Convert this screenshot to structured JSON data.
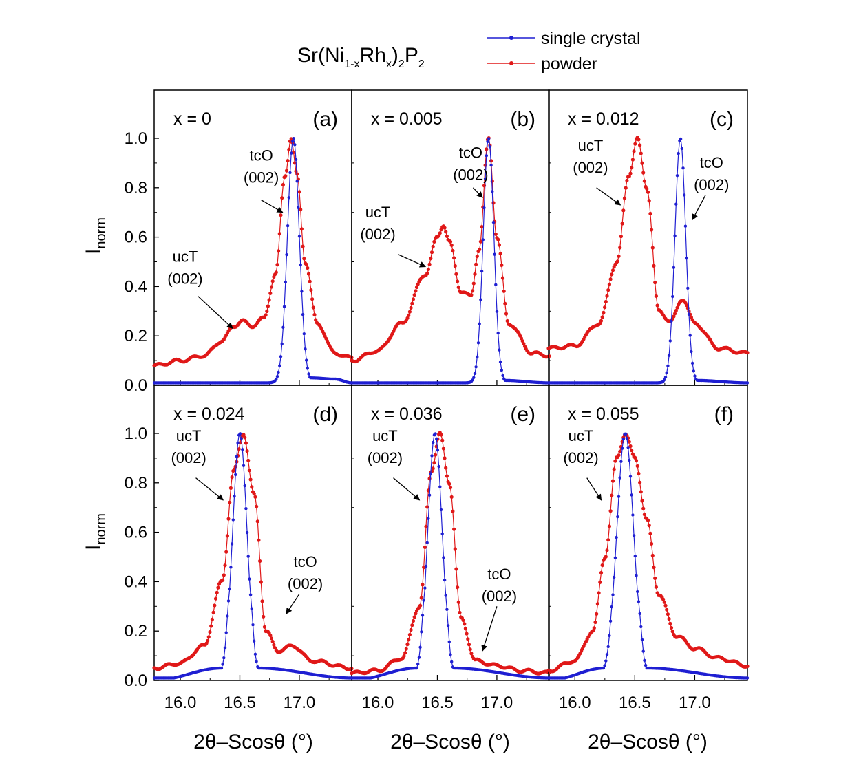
{
  "figure": {
    "formula": {
      "p1": "Sr(Ni",
      "s1": "1-x",
      "p2": "Rh",
      "s2": "x",
      "p3": ")",
      "s3": "2",
      "p4": "P",
      "s4": "2"
    },
    "ylabel": {
      "main": "I",
      "sub": "norm"
    },
    "xlabel": "2θ–Scosθ (°)"
  },
  "legend": [
    {
      "label": "single crystal",
      "color": "#1f1fd2"
    },
    {
      "label": "powder",
      "color": "#e01818"
    }
  ],
  "colors": {
    "single_crystal": "#1f1fd2",
    "powder": "#e01818"
  },
  "chart_data": [
    {
      "type": "line",
      "panel": "(a)",
      "x_label": "x = 0",
      "xlim": [
        15.78,
        17.44
      ],
      "ylim": [
        0,
        1.1
      ],
      "x_ticks": [
        16.0,
        16.5,
        17.0
      ],
      "x_tick_labels": [
        "16.0",
        "16.5",
        "17.0"
      ],
      "y_ticks": [
        0,
        0.2,
        0.4,
        0.6,
        0.8,
        1.0
      ],
      "y_tick_labels": [
        "0.0",
        "0.2",
        "0.4",
        "0.6",
        "0.8",
        "1.0"
      ],
      "series": [
        {
          "name": "single crystal",
          "peak_x": 16.95,
          "peak_y": 1.0,
          "width": 0.05,
          "base": 0.01,
          "points": [
            [
              15.78,
              0.01
            ],
            [
              16.8,
              0.01
            ],
            [
              16.87,
              0.07
            ],
            [
              16.91,
              0.5
            ],
            [
              16.95,
              1.0
            ],
            [
              16.99,
              0.5
            ],
            [
              17.03,
              0.07
            ],
            [
              17.1,
              0.03
            ],
            [
              17.3,
              0.025
            ],
            [
              17.44,
              0.01
            ]
          ]
        },
        {
          "name": "powder",
          "peak_x": 16.93,
          "peak_y": 1.0,
          "points": [
            [
              15.78,
              0.08
            ],
            [
              16.0,
              0.1
            ],
            [
              16.2,
              0.12
            ],
            [
              16.35,
              0.18
            ],
            [
              16.45,
              0.24
            ],
            [
              16.52,
              0.26
            ],
            [
              16.6,
              0.24
            ],
            [
              16.7,
              0.27
            ],
            [
              16.8,
              0.45
            ],
            [
              16.88,
              0.85
            ],
            [
              16.93,
              1.0
            ],
            [
              16.98,
              0.85
            ],
            [
              17.05,
              0.5
            ],
            [
              17.15,
              0.25
            ],
            [
              17.3,
              0.13
            ],
            [
              17.44,
              0.11
            ]
          ]
        }
      ],
      "annotations": [
        {
          "lines": [
            "tcO",
            "(002)"
          ],
          "x": 16.68,
          "y": 0.91,
          "arrow_from": [
            16.68,
            0.75
          ],
          "arrow_to": [
            16.86,
            0.7
          ]
        },
        {
          "lines": [
            "ucT",
            "(002)"
          ],
          "x": 16.04,
          "y": 0.5,
          "arrow_from": [
            16.15,
            0.36
          ],
          "arrow_to": [
            16.44,
            0.23
          ]
        }
      ]
    },
    {
      "type": "line",
      "panel": "(b)",
      "x_label": "x = 0.005",
      "xlim": [
        15.78,
        17.44
      ],
      "ylim": [
        0,
        1.1
      ],
      "x_ticks": [
        16.0,
        16.5,
        17.0
      ],
      "x_tick_labels": [
        "16.0",
        "16.5",
        "17.0"
      ],
      "series": [
        {
          "name": "single crystal",
          "peak_x": 16.93,
          "peak_y": 1.0,
          "width": 0.045,
          "base": 0.01,
          "points": [
            [
              15.78,
              0.01
            ],
            [
              16.8,
              0.01
            ],
            [
              16.87,
              0.2
            ],
            [
              16.93,
              1.0
            ],
            [
              16.99,
              0.2
            ],
            [
              17.05,
              0.02
            ],
            [
              17.44,
              0.01
            ]
          ]
        },
        {
          "name": "powder",
          "peak_x": 16.93,
          "peak_y": 1.0,
          "points": [
            [
              15.78,
              0.1
            ],
            [
              16.0,
              0.14
            ],
            [
              16.2,
              0.25
            ],
            [
              16.4,
              0.45
            ],
            [
              16.5,
              0.6
            ],
            [
              16.55,
              0.65
            ],
            [
              16.6,
              0.58
            ],
            [
              16.7,
              0.38
            ],
            [
              16.78,
              0.36
            ],
            [
              16.85,
              0.55
            ],
            [
              16.93,
              1.0
            ],
            [
              17.0,
              0.6
            ],
            [
              17.1,
              0.25
            ],
            [
              17.3,
              0.13
            ],
            [
              17.44,
              0.12
            ]
          ]
        }
      ],
      "annotations": [
        {
          "lines": [
            "tcO",
            "(002)"
          ],
          "x": 16.78,
          "y": 0.92,
          "arrow_from": [
            16.8,
            0.8
          ],
          "arrow_to": [
            16.88,
            0.76
          ]
        },
        {
          "lines": [
            "ucT",
            "(002)"
          ],
          "x": 16.0,
          "y": 0.68,
          "arrow_from": [
            16.17,
            0.53
          ],
          "arrow_to": [
            16.4,
            0.48
          ]
        }
      ]
    },
    {
      "type": "line",
      "panel": "(c)",
      "x_label": "x = 0.012",
      "xlim": [
        15.78,
        17.44
      ],
      "ylim": [
        0,
        1.1
      ],
      "x_ticks": [
        16.0,
        16.5,
        17.0
      ],
      "x_tick_labels": [
        "16.0",
        "16.5",
        "17.0"
      ],
      "series": [
        {
          "name": "single crystal",
          "peak_x": 16.88,
          "peak_y": 1.0,
          "width": 0.045,
          "base": 0.01,
          "points": [
            [
              15.78,
              0.01
            ],
            [
              16.75,
              0.01
            ],
            [
              16.82,
              0.2
            ],
            [
              16.88,
              1.0
            ],
            [
              16.94,
              0.2
            ],
            [
              17.0,
              0.02
            ],
            [
              17.44,
              0.01
            ]
          ]
        },
        {
          "name": "powder",
          "peak_x": 16.52,
          "peak_y": 1.0,
          "points": [
            [
              15.78,
              0.15
            ],
            [
              16.0,
              0.16
            ],
            [
              16.2,
              0.25
            ],
            [
              16.35,
              0.5
            ],
            [
              16.45,
              0.85
            ],
            [
              16.52,
              1.0
            ],
            [
              16.6,
              0.8
            ],
            [
              16.7,
              0.3
            ],
            [
              16.8,
              0.26
            ],
            [
              16.9,
              0.35
            ],
            [
              17.0,
              0.25
            ],
            [
              17.2,
              0.15
            ],
            [
              17.44,
              0.13
            ]
          ]
        }
      ],
      "annotations": [
        {
          "lines": [
            "ucT",
            "(002)"
          ],
          "x": 16.13,
          "y": 0.95,
          "arrow_from": [
            16.18,
            0.8
          ],
          "arrow_to": [
            16.38,
            0.73
          ]
        },
        {
          "lines": [
            "tcO",
            "(002)"
          ],
          "x": 17.14,
          "y": 0.88,
          "arrow_from": [
            17.09,
            0.77
          ],
          "arrow_to": [
            16.98,
            0.67
          ]
        }
      ]
    },
    {
      "type": "line",
      "panel": "(d)",
      "x_label": "x = 0.024",
      "xlim": [
        15.78,
        17.44
      ],
      "ylim": [
        0,
        1.1
      ],
      "x_ticks": [
        16.0,
        16.5,
        17.0
      ],
      "x_tick_labels": [
        "16.0",
        "16.5",
        "17.0"
      ],
      "series": [
        {
          "name": "single crystal",
          "peak_x": 16.5,
          "peak_y": 1.0,
          "width": 0.06,
          "base": 0.01,
          "points": [
            [
              15.78,
              0.0
            ],
            [
              16.35,
              0.05
            ],
            [
              16.43,
              0.4
            ],
            [
              16.5,
              1.0
            ],
            [
              16.57,
              0.4
            ],
            [
              16.65,
              0.05
            ],
            [
              17.44,
              0.01
            ]
          ]
        },
        {
          "name": "powder",
          "peak_x": 16.53,
          "peak_y": 1.0,
          "points": [
            [
              15.78,
              0.05
            ],
            [
              16.0,
              0.07
            ],
            [
              16.2,
              0.14
            ],
            [
              16.35,
              0.4
            ],
            [
              16.45,
              0.85
            ],
            [
              16.53,
              1.0
            ],
            [
              16.62,
              0.75
            ],
            [
              16.72,
              0.2
            ],
            [
              16.82,
              0.12
            ],
            [
              16.95,
              0.14
            ],
            [
              17.1,
              0.08
            ],
            [
              17.44,
              0.05
            ]
          ]
        }
      ],
      "annotations": [
        {
          "lines": [
            "ucT",
            "(002)"
          ],
          "x": 16.07,
          "y": 0.97,
          "arrow_from": [
            16.13,
            0.82
          ],
          "arrow_to": [
            16.36,
            0.73
          ]
        },
        {
          "lines": [
            "tcO",
            "(002)"
          ],
          "x": 17.05,
          "y": 0.46,
          "arrow_from": [
            17.0,
            0.35
          ],
          "arrow_to": [
            16.89,
            0.27
          ]
        }
      ]
    },
    {
      "type": "line",
      "panel": "(e)",
      "x_label": "x = 0.036",
      "xlim": [
        15.78,
        17.44
      ],
      "ylim": [
        0,
        1.1
      ],
      "x_ticks": [
        16.0,
        16.5,
        17.0
      ],
      "x_tick_labels": [
        "16.0",
        "16.5",
        "17.0"
      ],
      "series": [
        {
          "name": "single crystal",
          "peak_x": 16.48,
          "peak_y": 1.0,
          "width": 0.06,
          "base": 0.01,
          "points": [
            [
              15.78,
              0.0
            ],
            [
              16.33,
              0.05
            ],
            [
              16.41,
              0.4
            ],
            [
              16.48,
              1.0
            ],
            [
              16.55,
              0.4
            ],
            [
              16.63,
              0.05
            ],
            [
              17.44,
              0.01
            ]
          ]
        },
        {
          "name": "powder",
          "peak_x": 16.52,
          "peak_y": 1.0,
          "points": [
            [
              15.78,
              0.03
            ],
            [
              16.0,
              0.04
            ],
            [
              16.2,
              0.09
            ],
            [
              16.35,
              0.3
            ],
            [
              16.45,
              0.85
            ],
            [
              16.52,
              1.0
            ],
            [
              16.6,
              0.8
            ],
            [
              16.7,
              0.25
            ],
            [
              16.82,
              0.08
            ],
            [
              17.0,
              0.06
            ],
            [
              17.2,
              0.04
            ],
            [
              17.44,
              0.03
            ]
          ]
        }
      ],
      "annotations": [
        {
          "lines": [
            "ucT",
            "(002)"
          ],
          "x": 16.06,
          "y": 0.97,
          "arrow_from": [
            16.13,
            0.82
          ],
          "arrow_to": [
            16.35,
            0.73
          ]
        },
        {
          "lines": [
            "tcO",
            "(002)"
          ],
          "x": 17.02,
          "y": 0.41,
          "arrow_from": [
            17.0,
            0.3
          ],
          "arrow_to": [
            16.88,
            0.12
          ]
        }
      ]
    },
    {
      "type": "line",
      "panel": "(f)",
      "x_label": "x = 0.055",
      "xlim": [
        15.78,
        17.44
      ],
      "ylim": [
        0,
        1.1
      ],
      "x_ticks": [
        16.0,
        16.5,
        17.0
      ],
      "x_tick_labels": [
        "16.0",
        "16.5",
        "17.0"
      ],
      "series": [
        {
          "name": "single crystal",
          "peak_x": 16.42,
          "peak_y": 1.0,
          "width": 0.07,
          "base": 0.01,
          "points": [
            [
              15.78,
              0.0
            ],
            [
              16.25,
              0.05
            ],
            [
              16.34,
              0.4
            ],
            [
              16.42,
              1.0
            ],
            [
              16.5,
              0.4
            ],
            [
              16.6,
              0.05
            ],
            [
              17.44,
              0.01
            ]
          ]
        },
        {
          "name": "powder",
          "peak_x": 16.42,
          "peak_y": 1.0,
          "points": [
            [
              15.78,
              0.04
            ],
            [
              16.0,
              0.08
            ],
            [
              16.15,
              0.2
            ],
            [
              16.25,
              0.5
            ],
            [
              16.35,
              0.9
            ],
            [
              16.42,
              1.0
            ],
            [
              16.5,
              0.9
            ],
            [
              16.6,
              0.65
            ],
            [
              16.7,
              0.35
            ],
            [
              16.85,
              0.18
            ],
            [
              17.0,
              0.13
            ],
            [
              17.2,
              0.09
            ],
            [
              17.44,
              0.06
            ]
          ]
        }
      ],
      "annotations": [
        {
          "lines": [
            "ucT",
            "(002)"
          ],
          "x": 16.05,
          "y": 0.97,
          "arrow_from": [
            16.1,
            0.82
          ],
          "arrow_to": [
            16.22,
            0.73
          ]
        }
      ]
    }
  ]
}
